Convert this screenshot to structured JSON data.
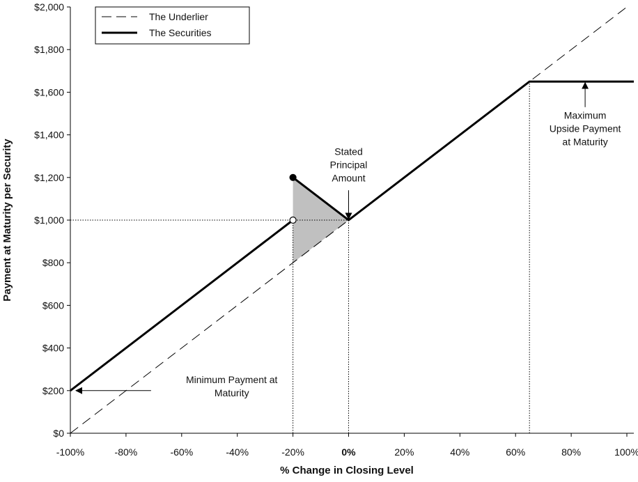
{
  "chart_data": {
    "type": "line",
    "xlabel": "% Change in Closing Level",
    "ylabel": "Payment at Maturity per Security",
    "xlim": [
      -100,
      102.5
    ],
    "ylim": [
      0,
      2000
    ],
    "x_ticks": [
      {
        "value": -100,
        "label": "-100%"
      },
      {
        "value": -80,
        "label": "-80%"
      },
      {
        "value": -60,
        "label": "-60%"
      },
      {
        "value": -40,
        "label": "-40%"
      },
      {
        "value": -20,
        "label": "-20%"
      },
      {
        "value": 0,
        "label": "0%",
        "bold": true
      },
      {
        "value": 20,
        "label": "20%"
      },
      {
        "value": 40,
        "label": "40%"
      },
      {
        "value": 60,
        "label": "60%"
      },
      {
        "value": 80,
        "label": "80%"
      },
      {
        "value": 100,
        "label": "100%"
      }
    ],
    "y_ticks": [
      {
        "value": 0,
        "label": "$0"
      },
      {
        "value": 200,
        "label": "$200"
      },
      {
        "value": 400,
        "label": "$400"
      },
      {
        "value": 600,
        "label": "$600"
      },
      {
        "value": 800,
        "label": "$800"
      },
      {
        "value": 1000,
        "label": "$1,000"
      },
      {
        "value": 1200,
        "label": "$1,200"
      },
      {
        "value": 1400,
        "label": "$1,400"
      },
      {
        "value": 1600,
        "label": "$1,600"
      },
      {
        "value": 1800,
        "label": "$1,800"
      },
      {
        "value": 2000,
        "label": "$2,000"
      }
    ],
    "grid": false,
    "legend": {
      "placement": "top-left",
      "entries": [
        {
          "label": "The Underlier",
          "style": "dashed"
        },
        {
          "label": "The Securities",
          "style": "solid-thick"
        }
      ]
    },
    "series": [
      {
        "name": "The Underlier",
        "style": "dashed",
        "points": [
          [
            -100,
            0
          ],
          [
            100,
            2000
          ]
        ]
      },
      {
        "name": "The Securities",
        "style": "solid-thick",
        "segments": [
          [
            [
              -100,
              200
            ],
            [
              -20,
              1000
            ]
          ],
          [
            [
              -20,
              1200
            ],
            [
              0,
              1000
            ],
            [
              65,
              1650
            ],
            [
              102.5,
              1650
            ]
          ]
        ]
      }
    ],
    "markers": [
      {
        "x": -20,
        "y": 1200,
        "fill": "filled"
      },
      {
        "x": -20,
        "y": 1000,
        "fill": "open"
      }
    ],
    "shaded_region": {
      "points": [
        [
          -20,
          1200
        ],
        [
          0,
          1000
        ],
        [
          -20,
          800
        ]
      ],
      "color": "#c0c0c0"
    },
    "reference_lines": [
      {
        "from": [
          -100,
          1000
        ],
        "to": [
          0,
          1000
        ]
      },
      {
        "from": [
          -20,
          0
        ],
        "to": [
          -20,
          1000
        ]
      },
      {
        "from": [
          0,
          0
        ],
        "to": [
          0,
          1000
        ]
      },
      {
        "from": [
          65,
          0
        ],
        "to": [
          65,
          1650
        ]
      }
    ],
    "annotations": [
      {
        "lines": [
          "Stated",
          "Principal",
          "Amount"
        ],
        "text_at": [
          0,
          1305
        ],
        "arrow_from": [
          0,
          1140
        ],
        "arrow_to": [
          0,
          1005
        ]
      },
      {
        "lines": [
          "Maximum",
          "Upside Payment",
          "at Maturity"
        ],
        "text_at": [
          85,
          1475
        ],
        "arrow_from": [
          85,
          1530
        ],
        "arrow_to": [
          85,
          1645
        ]
      },
      {
        "lines": [
          "Minimum Payment at",
          "Maturity"
        ],
        "text_at": [
          -42,
          235
        ],
        "arrow_from": [
          -71,
          200
        ],
        "arrow_to": [
          -98,
          200
        ]
      }
    ]
  }
}
